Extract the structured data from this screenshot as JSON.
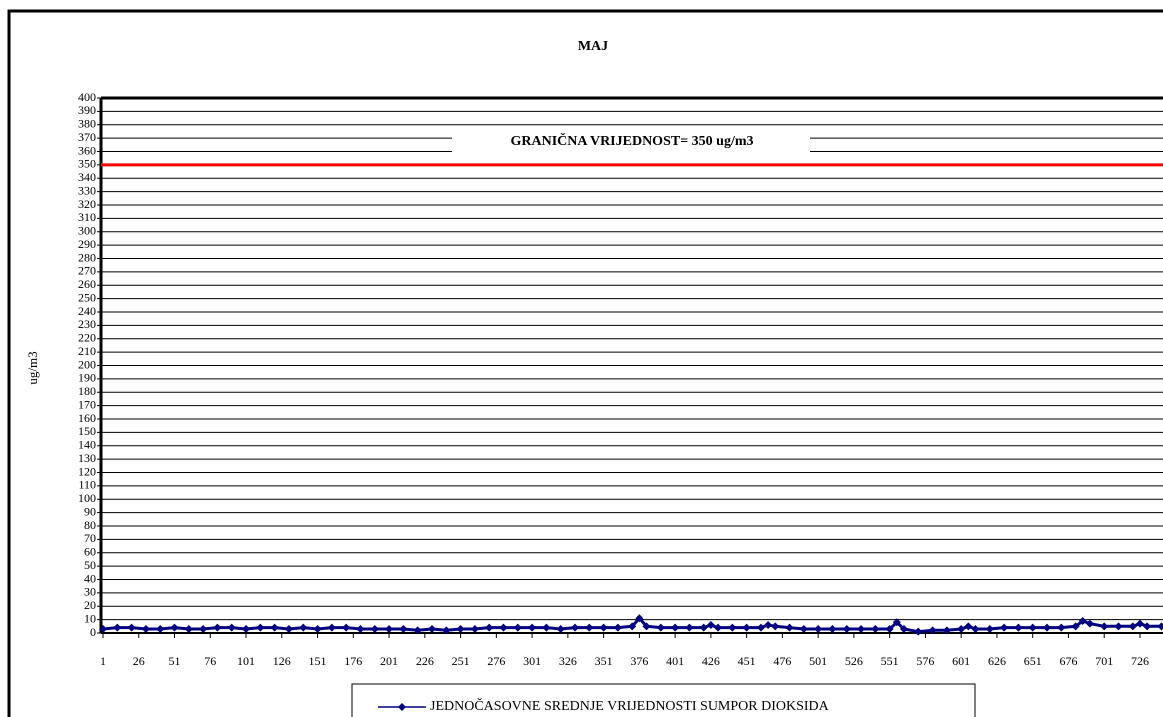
{
  "chart_data": {
    "type": "line",
    "title": "MAJ",
    "y_label": "ug/m3",
    "x": [
      1,
      11,
      21,
      31,
      41,
      51,
      61,
      71,
      81,
      91,
      101,
      111,
      121,
      131,
      141,
      151,
      161,
      171,
      181,
      191,
      201,
      211,
      221,
      231,
      241,
      251,
      261,
      271,
      281,
      291,
      301,
      311,
      321,
      331,
      341,
      351,
      361,
      371,
      376,
      381,
      391,
      401,
      411,
      421,
      426,
      431,
      441,
      451,
      461,
      466,
      471,
      481,
      491,
      501,
      511,
      521,
      531,
      541,
      551,
      556,
      561,
      571,
      581,
      591,
      601,
      606,
      611,
      621,
      631,
      641,
      651,
      661,
      671,
      681,
      686,
      691,
      701,
      711,
      721,
      726,
      731,
      741
    ],
    "series": [
      {
        "name": "JEDNOČASOVNE SREDNJE VRIJEDNOSTI SUMPOR DIOKSIDA",
        "color": "#000080",
        "values": [
          3,
          4,
          4,
          3,
          3,
          4,
          3,
          3,
          4,
          4,
          3,
          4,
          4,
          3,
          4,
          3,
          4,
          4,
          3,
          3,
          3,
          3,
          2,
          3,
          2,
          3,
          3,
          4,
          4,
          4,
          4,
          4,
          3,
          4,
          4,
          4,
          4,
          5,
          11,
          5,
          4,
          4,
          4,
          4,
          6,
          4,
          4,
          4,
          4,
          6,
          5,
          4,
          3,
          3,
          3,
          3,
          3,
          3,
          3,
          8,
          3,
          1,
          2,
          2,
          3,
          5,
          3,
          3,
          4,
          4,
          4,
          4,
          4,
          5,
          9,
          7,
          5,
          5,
          5,
          7,
          5,
          5
        ]
      }
    ],
    "threshold": {
      "value": 350,
      "label": "GRANIČNA VRIJEDNOST= 350 ug/m3",
      "color": "#ff0000"
    },
    "xlim": [
      1,
      744
    ],
    "xticks": [
      1,
      26,
      51,
      76,
      101,
      126,
      151,
      176,
      201,
      226,
      251,
      276,
      301,
      326,
      351,
      376,
      401,
      426,
      451,
      476,
      501,
      526,
      551,
      576,
      601,
      626,
      651,
      676,
      701,
      726
    ],
    "ylim": [
      0,
      400
    ],
    "yticks": [
      0,
      10,
      20,
      30,
      40,
      50,
      60,
      70,
      80,
      90,
      100,
      110,
      120,
      130,
      140,
      150,
      160,
      170,
      180,
      190,
      200,
      210,
      220,
      230,
      240,
      250,
      260,
      270,
      280,
      290,
      300,
      310,
      320,
      330,
      340,
      350,
      360,
      370,
      380,
      390,
      400
    ],
    "grid": true
  }
}
